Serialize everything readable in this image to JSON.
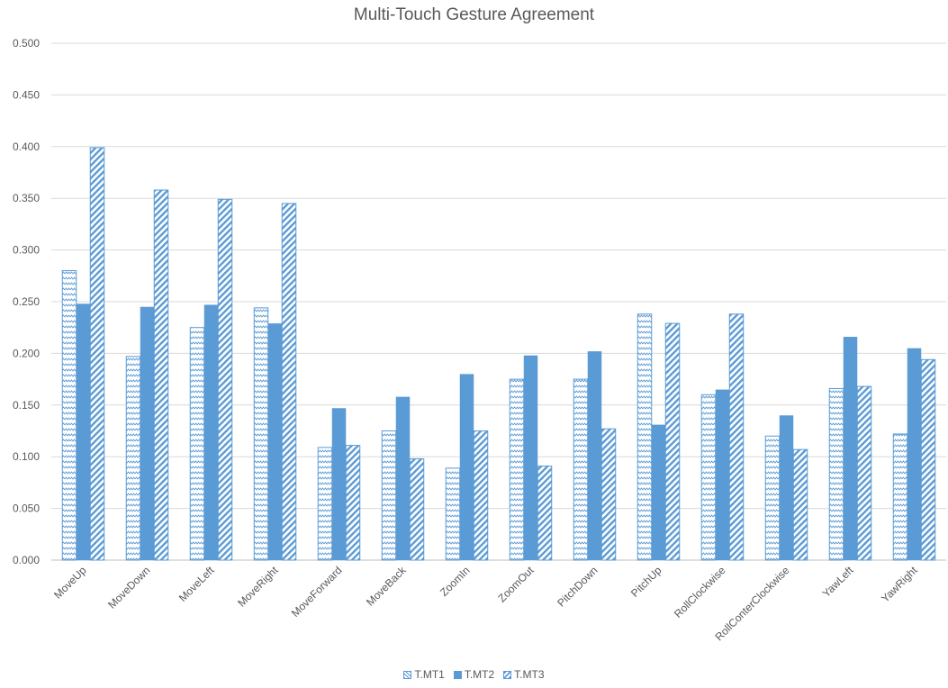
{
  "chart_data": {
    "type": "bar",
    "title": "Multi-Touch Gesture Agreement",
    "xlabel": "",
    "ylabel": "",
    "ylim": [
      0,
      0.5
    ],
    "yticks": [
      "0.000",
      "0.050",
      "0.100",
      "0.150",
      "0.200",
      "0.250",
      "0.300",
      "0.350",
      "0.400",
      "0.450",
      "0.500"
    ],
    "grid": true,
    "legend_position": "bottom",
    "categories": [
      "MoveUp",
      "MoveDown",
      "MoveLeft",
      "MoveRight",
      "MoveForward",
      "MoveBack",
      "ZoomIn",
      "ZoomOut",
      "PitchDown",
      "PitchUp",
      "RollClockwise",
      "RollConterClockwise",
      "YawLeft",
      "YawRight"
    ],
    "series": [
      {
        "name": "T.MT1",
        "pattern": "zigzag",
        "values": [
          0.28,
          0.197,
          0.225,
          0.244,
          0.109,
          0.125,
          0.089,
          0.175,
          0.175,
          0.238,
          0.16,
          0.12,
          0.166,
          0.122
        ]
      },
      {
        "name": "T.MT2",
        "pattern": "solid",
        "values": [
          0.248,
          0.245,
          0.247,
          0.229,
          0.147,
          0.158,
          0.18,
          0.198,
          0.202,
          0.131,
          0.165,
          0.14,
          0.216,
          0.205
        ]
      },
      {
        "name": "T.MT3",
        "pattern": "diagonal",
        "values": [
          0.399,
          0.358,
          0.349,
          0.345,
          0.111,
          0.098,
          0.125,
          0.091,
          0.127,
          0.229,
          0.238,
          0.107,
          0.168,
          0.194
        ]
      }
    ],
    "colors": {
      "bar": "#5b9bd5",
      "grid": "#d9d9d9",
      "text": "#595959"
    }
  }
}
